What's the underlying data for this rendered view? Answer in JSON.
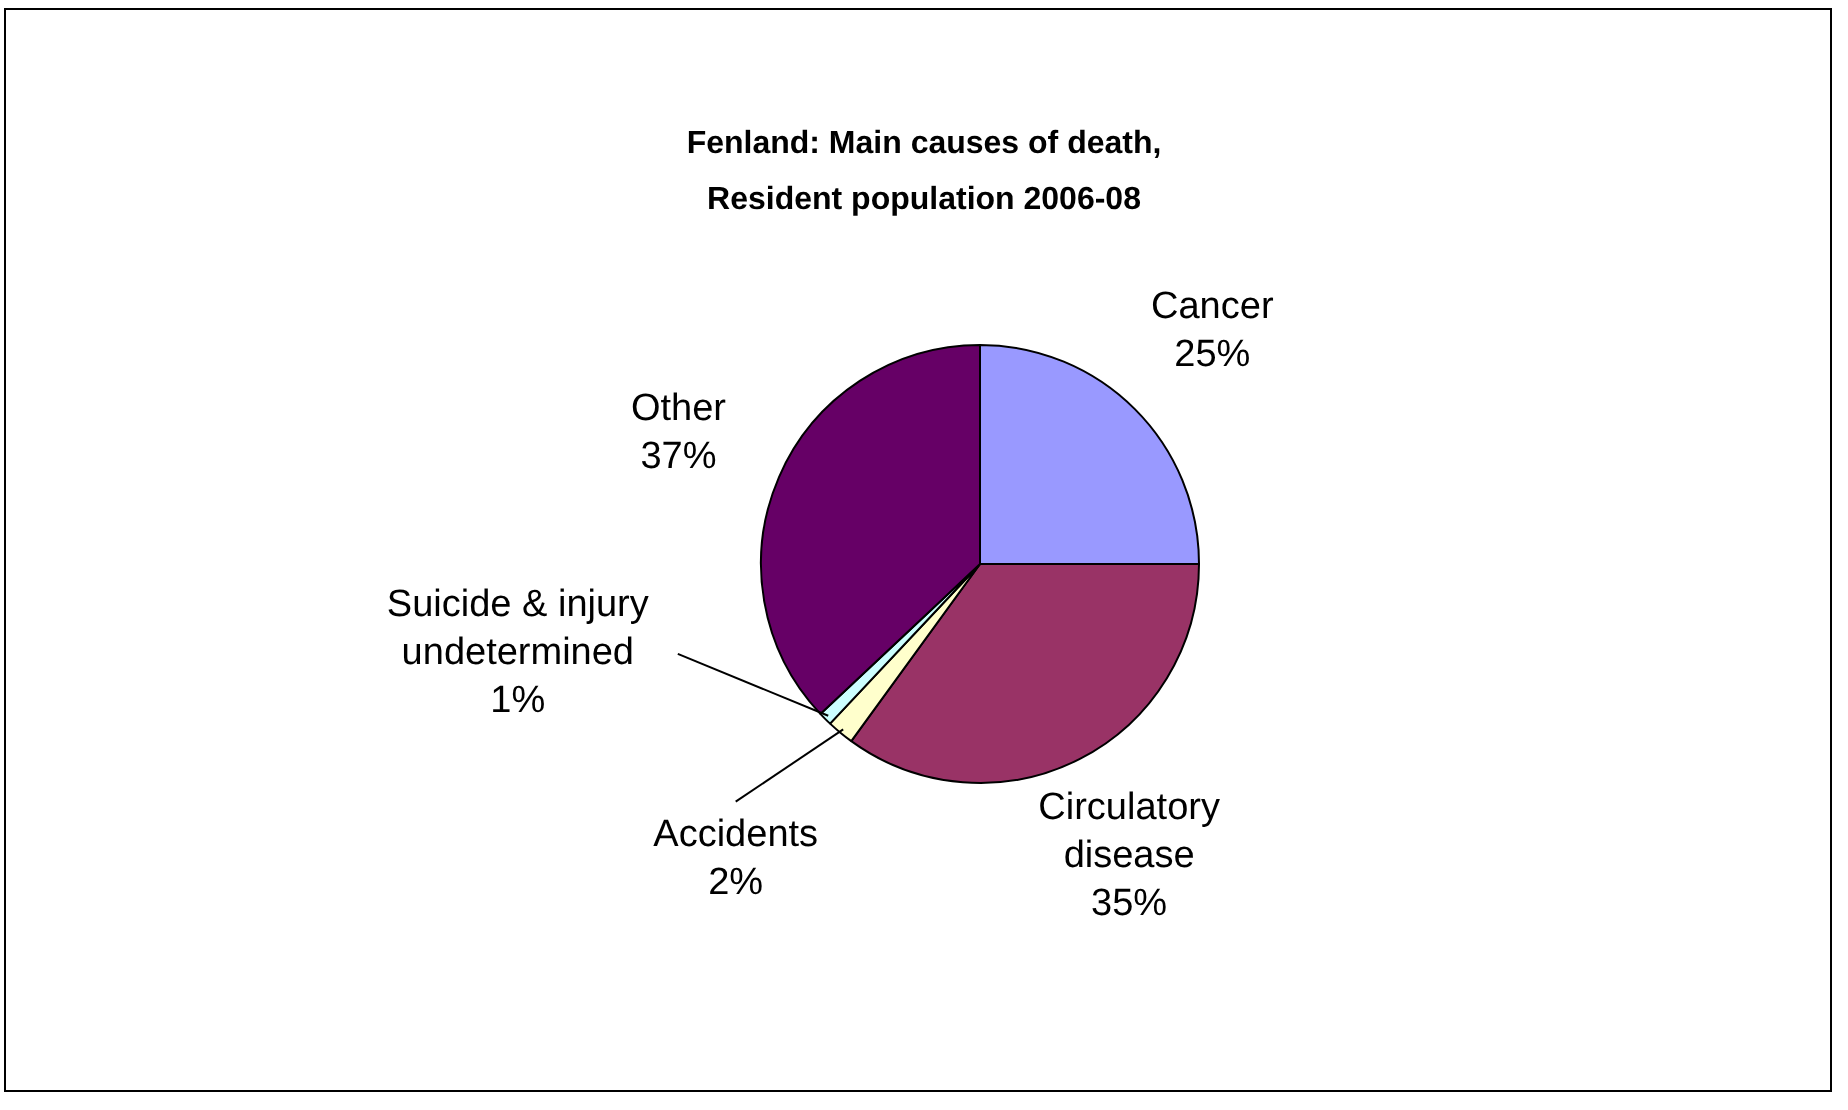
{
  "chart_data": {
    "type": "pie",
    "title": "Fenland: Main causes of death, Resident population 2006-08",
    "categories": [
      "Cancer",
      "Circulatory disease",
      "Accidents",
      "Suicide & injury undetermined",
      "Other"
    ],
    "values": [
      25,
      35,
      2,
      1,
      37
    ],
    "value_labels": [
      "25%",
      "35%",
      "2%",
      "1%",
      "37%"
    ],
    "colors": [
      "#9999ff",
      "#993366",
      "#ffffcc",
      "#ccffff",
      "#660066"
    ],
    "legend": false
  }
}
